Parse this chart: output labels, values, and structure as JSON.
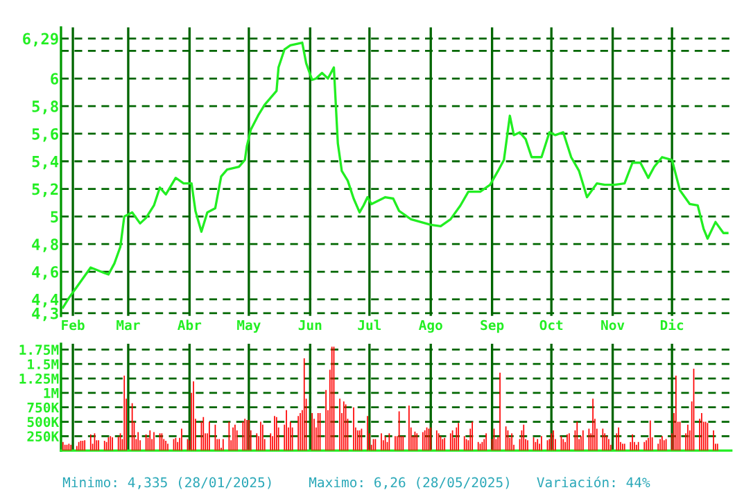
{
  "chart_data": [
    {
      "type": "line",
      "xlim": [
        "2025-01-26",
        "2025-12-31"
      ],
      "ylim": [
        4.28,
        6.37
      ],
      "xticks": [
        {
          "value": "2025-02-01",
          "label": "Feb"
        },
        {
          "value": "2025-03-01",
          "label": "Mar"
        },
        {
          "value": "2025-04-01",
          "label": "Abr"
        },
        {
          "value": "2025-05-01",
          "label": "May"
        },
        {
          "value": "2025-06-01",
          "label": "Jun"
        },
        {
          "value": "2025-07-01",
          "label": "Jul"
        },
        {
          "value": "2025-08-01",
          "label": "Ago"
        },
        {
          "value": "2025-09-01",
          "label": "Sep"
        },
        {
          "value": "2025-10-01",
          "label": "Oct"
        },
        {
          "value": "2025-11-01",
          "label": "Nov"
        },
        {
          "value": "2025-12-01",
          "label": "Dic"
        }
      ],
      "yticks": [
        {
          "value": 4.3,
          "label": "4,3"
        },
        {
          "value": 4.4,
          "label": "4,4"
        },
        {
          "value": 4.6,
          "label": "4,6"
        },
        {
          "value": 4.8,
          "label": "4,8"
        },
        {
          "value": 5,
          "label": "5"
        },
        {
          "value": 5.2,
          "label": "5,2"
        },
        {
          "value": 5.4,
          "label": "5,4"
        },
        {
          "value": 5.6,
          "label": "5,6"
        },
        {
          "value": 5.8,
          "label": "5,8"
        },
        {
          "value": 6,
          "label": "6"
        },
        {
          "value": 6.2,
          "label": null
        },
        {
          "value": 6.29,
          "label": "6,29"
        }
      ],
      "grid": true,
      "x": [
        "2025-01-27",
        "2025-01-30",
        "2025-02-03",
        "2025-02-07",
        "2025-02-10",
        "2025-02-17",
        "2025-02-19",
        "2025-02-22",
        "2025-02-25",
        "2025-02-27",
        "2025-03-03",
        "2025-03-07",
        "2025-03-10",
        "2025-03-14",
        "2025-03-17",
        "2025-03-20",
        "2025-03-25",
        "2025-03-29",
        "2025-04-02",
        "2025-04-04",
        "2025-04-07",
        "2025-04-10",
        "2025-04-14",
        "2025-04-17",
        "2025-04-20",
        "2025-04-26",
        "2025-04-29",
        "2025-04-30",
        "2025-05-02",
        "2025-05-06",
        "2025-05-09",
        "2025-05-12",
        "2025-05-15",
        "2025-05-16",
        "2025-05-19",
        "2025-05-22",
        "2025-05-28",
        "2025-05-30",
        "2025-06-02",
        "2025-06-04",
        "2025-06-07",
        "2025-06-10",
        "2025-06-13",
        "2025-06-15",
        "2025-06-17",
        "2025-06-20",
        "2025-06-23",
        "2025-06-26",
        "2025-06-28",
        "2025-06-30",
        "2025-07-02",
        "2025-07-09",
        "2025-07-13",
        "2025-07-16",
        "2025-07-22",
        "2025-07-27",
        "2025-08-01",
        "2025-08-06",
        "2025-08-11",
        "2025-08-16",
        "2025-08-20",
        "2025-08-26",
        "2025-08-31",
        "2025-09-04",
        "2025-09-07",
        "2025-09-10",
        "2025-09-12",
        "2025-09-15",
        "2025-09-18",
        "2025-09-21",
        "2025-09-26",
        "2025-09-30",
        "2025-10-03",
        "2025-10-07",
        "2025-10-11",
        "2025-10-15",
        "2025-10-19",
        "2025-10-24",
        "2025-10-28",
        "2025-11-02",
        "2025-11-07",
        "2025-11-11",
        "2025-11-15",
        "2025-11-19",
        "2025-11-22",
        "2025-11-26",
        "2025-12-01",
        "2025-12-05",
        "2025-12-10",
        "2025-12-14",
        "2025-12-17",
        "2025-12-19",
        "2025-12-23",
        "2025-12-27",
        "2025-12-29"
      ],
      "series": [
        {
          "color": "#22ee22",
          "values": [
            4.34,
            4.41,
            4.49,
            4.57,
            4.63,
            4.59,
            4.58,
            4.66,
            4.78,
            5.0,
            5.03,
            4.95,
            4.99,
            5.08,
            5.21,
            5.16,
            5.28,
            5.24,
            5.24,
            5.04,
            4.89,
            5.03,
            5.06,
            5.29,
            5.34,
            5.36,
            5.41,
            5.51,
            5.63,
            5.74,
            5.81,
            5.86,
            5.91,
            6.08,
            6.21,
            6.24,
            6.26,
            6.11,
            5.99,
            6.0,
            6.04,
            6.0,
            6.08,
            5.53,
            5.33,
            5.26,
            5.13,
            5.03,
            5.08,
            5.14,
            5.09,
            5.14,
            5.13,
            5.04,
            4.98,
            4.96,
            4.94,
            4.93,
            4.98,
            5.08,
            5.18,
            5.18,
            5.23,
            5.33,
            5.41,
            5.73,
            5.59,
            5.61,
            5.56,
            5.43,
            5.43,
            5.61,
            5.59,
            5.61,
            5.43,
            5.33,
            5.14,
            5.24,
            5.23,
            5.23,
            5.24,
            5.39,
            5.39,
            5.28,
            5.36,
            5.43,
            5.41,
            5.19,
            5.09,
            5.08,
            4.91,
            4.84,
            4.96,
            4.88,
            4.88
          ]
        }
      ],
      "tick_labels": "xy",
      "annotations": [
        "Minimo: 4,335 (28/01/2025)",
        "Maximo: 6,26 (28/05/2025)",
        "Variación: 44%"
      ]
    },
    {
      "type": "bar",
      "xlim": [
        "2025-01-26",
        "2025-12-31"
      ],
      "ylim": [
        0,
        1850000
      ],
      "xticks": [
        {
          "value": "2025-02-01",
          "label": null
        },
        {
          "value": "2025-03-01",
          "label": null
        },
        {
          "value": "2025-04-01",
          "label": null
        },
        {
          "value": "2025-05-01",
          "label": null
        },
        {
          "value": "2025-06-01",
          "label": null
        },
        {
          "value": "2025-07-01",
          "label": null
        },
        {
          "value": "2025-08-01",
          "label": null
        },
        {
          "value": "2025-09-01",
          "label": null
        },
        {
          "value": "2025-10-01",
          "label": null
        },
        {
          "value": "2025-11-01",
          "label": null
        },
        {
          "value": "2025-12-01",
          "label": null
        }
      ],
      "yticks": [
        {
          "value": 250000,
          "label": "250K"
        },
        {
          "value": 500000,
          "label": "500K"
        },
        {
          "value": 750000,
          "label": "750K"
        },
        {
          "value": 1000000,
          "label": "1M"
        },
        {
          "value": 1250000,
          "label": "1.25M"
        },
        {
          "value": 1500000,
          "label": "1.5M"
        },
        {
          "value": 1750000,
          "label": "1.75M"
        }
      ],
      "grid": true,
      "tick_labels": "y",
      "x": [
        "2025-01-27",
        "2025-01-28",
        "2025-01-29",
        "2025-01-30",
        "2025-01-31",
        "2025-02-03",
        "2025-02-04",
        "2025-02-05",
        "2025-02-06",
        "2025-02-07",
        "2025-02-10",
        "2025-02-11",
        "2025-02-12",
        "2025-02-13",
        "2025-02-14",
        "2025-02-17",
        "2025-02-18",
        "2025-02-19",
        "2025-02-20",
        "2025-02-21",
        "2025-02-24",
        "2025-02-25",
        "2025-02-26",
        "2025-02-27",
        "2025-02-28",
        "2025-03-03",
        "2025-03-04",
        "2025-03-05",
        "2025-03-06",
        "2025-03-07",
        "2025-03-10",
        "2025-03-11",
        "2025-03-12",
        "2025-03-13",
        "2025-03-14",
        "2025-03-17",
        "2025-03-18",
        "2025-03-19",
        "2025-03-20",
        "2025-03-21",
        "2025-03-24",
        "2025-03-25",
        "2025-03-26",
        "2025-03-27",
        "2025-03-28",
        "2025-03-31",
        "2025-04-01",
        "2025-04-02",
        "2025-04-03",
        "2025-04-04",
        "2025-04-07",
        "2025-04-08",
        "2025-04-09",
        "2025-04-10",
        "2025-04-11",
        "2025-04-14",
        "2025-04-15",
        "2025-04-16",
        "2025-04-17",
        "2025-04-18",
        "2025-04-21",
        "2025-04-22",
        "2025-04-23",
        "2025-04-24",
        "2025-04-25",
        "2025-04-28",
        "2025-04-29",
        "2025-04-30",
        "2025-05-01",
        "2025-05-02",
        "2025-05-05",
        "2025-05-06",
        "2025-05-07",
        "2025-05-08",
        "2025-05-09",
        "2025-05-12",
        "2025-05-13",
        "2025-05-14",
        "2025-05-15",
        "2025-05-16",
        "2025-05-19",
        "2025-05-20",
        "2025-05-21",
        "2025-05-22",
        "2025-05-23",
        "2025-05-26",
        "2025-05-27",
        "2025-05-28",
        "2025-05-29",
        "2025-05-30",
        "2025-06-02",
        "2025-06-03",
        "2025-06-04",
        "2025-06-05",
        "2025-06-06",
        "2025-06-09",
        "2025-06-10",
        "2025-06-11",
        "2025-06-12",
        "2025-06-13",
        "2025-06-16",
        "2025-06-17",
        "2025-06-18",
        "2025-06-19",
        "2025-06-20",
        "2025-06-23",
        "2025-06-24",
        "2025-06-25",
        "2025-06-26",
        "2025-06-27",
        "2025-06-30",
        "2025-07-01",
        "2025-07-02",
        "2025-07-03",
        "2025-07-04",
        "2025-07-07",
        "2025-07-08",
        "2025-07-09",
        "2025-07-10",
        "2025-07-11",
        "2025-07-14",
        "2025-07-15",
        "2025-07-16",
        "2025-07-17",
        "2025-07-18",
        "2025-07-21",
        "2025-07-22",
        "2025-07-23",
        "2025-07-24",
        "2025-07-25",
        "2025-07-28",
        "2025-07-29",
        "2025-07-30",
        "2025-07-31",
        "2025-08-01",
        "2025-08-04",
        "2025-08-05",
        "2025-08-06",
        "2025-08-07",
        "2025-08-08",
        "2025-08-11",
        "2025-08-12",
        "2025-08-13",
        "2025-08-14",
        "2025-08-15",
        "2025-08-18",
        "2025-08-19",
        "2025-08-20",
        "2025-08-21",
        "2025-08-22",
        "2025-08-25",
        "2025-08-26",
        "2025-08-27",
        "2025-08-28",
        "2025-08-29",
        "2025-09-01",
        "2025-09-02",
        "2025-09-03",
        "2025-09-04",
        "2025-09-05",
        "2025-09-08",
        "2025-09-09",
        "2025-09-10",
        "2025-09-11",
        "2025-09-12",
        "2025-09-15",
        "2025-09-16",
        "2025-09-17",
        "2025-09-18",
        "2025-09-19",
        "2025-09-22",
        "2025-09-23",
        "2025-09-24",
        "2025-09-25",
        "2025-09-26",
        "2025-09-29",
        "2025-09-30",
        "2025-10-01",
        "2025-10-02",
        "2025-10-03",
        "2025-10-06",
        "2025-10-07",
        "2025-10-08",
        "2025-10-09",
        "2025-10-10",
        "2025-10-13",
        "2025-10-14",
        "2025-10-15",
        "2025-10-16",
        "2025-10-17",
        "2025-10-20",
        "2025-10-21",
        "2025-10-22",
        "2025-10-23",
        "2025-10-24",
        "2025-10-27",
        "2025-10-28",
        "2025-10-29",
        "2025-10-30",
        "2025-10-31",
        "2025-11-03",
        "2025-11-04",
        "2025-11-05",
        "2025-11-06",
        "2025-11-07",
        "2025-11-10",
        "2025-11-11",
        "2025-11-12",
        "2025-11-13",
        "2025-11-14",
        "2025-11-17",
        "2025-11-18",
        "2025-11-19",
        "2025-11-20",
        "2025-11-21",
        "2025-11-24",
        "2025-11-25",
        "2025-11-26",
        "2025-11-27",
        "2025-11-28",
        "2025-12-01",
        "2025-12-02",
        "2025-12-03",
        "2025-12-04",
        "2025-12-05",
        "2025-12-08",
        "2025-12-09",
        "2025-12-10",
        "2025-12-11",
        "2025-12-12",
        "2025-12-15",
        "2025-12-16",
        "2025-12-17",
        "2025-12-18",
        "2025-12-19",
        "2025-12-22",
        "2025-12-23",
        "2025-12-24"
      ],
      "series": [
        {
          "color": "#ff0000",
          "values": [
            150000,
            100000,
            100000,
            120000,
            100000,
            80000,
            150000,
            170000,
            170000,
            180000,
            280000,
            120000,
            300000,
            180000,
            180000,
            170000,
            150000,
            230000,
            250000,
            230000,
            240000,
            300000,
            200000,
            1300000,
            900000,
            820000,
            500000,
            200000,
            320000,
            180000,
            280000,
            220000,
            350000,
            200000,
            320000,
            300000,
            300000,
            200000,
            170000,
            120000,
            200000,
            220000,
            150000,
            220000,
            380000,
            200000,
            180000,
            1000000,
            1200000,
            550000,
            500000,
            580000,
            300000,
            300000,
            500000,
            450000,
            200000,
            200000,
            50000,
            200000,
            500000,
            180000,
            400000,
            450000,
            350000,
            500000,
            550000,
            530000,
            530000,
            350000,
            300000,
            250000,
            500000,
            450000,
            200000,
            300000,
            250000,
            600000,
            580000,
            400000,
            450000,
            700000,
            400000,
            500000,
            400000,
            600000,
            650000,
            700000,
            1600000,
            900000,
            650000,
            550000,
            400000,
            650000,
            650000,
            1050000,
            700000,
            1400000,
            1800000,
            1800000,
            900000,
            650000,
            850000,
            800000,
            550000,
            750000,
            400000,
            350000,
            350000,
            380000,
            600000,
            300000,
            100000,
            200000,
            200000,
            300000,
            180000,
            250000,
            150000,
            300000,
            250000,
            250000,
            680000,
            250000,
            250000,
            780000,
            400000,
            250000,
            330000,
            300000,
            320000,
            350000,
            400000,
            380000,
            400000,
            350000,
            300000,
            250000,
            200000,
            220000,
            300000,
            350000,
            220000,
            400000,
            480000,
            250000,
            200000,
            180000,
            380000,
            500000,
            150000,
            120000,
            150000,
            200000,
            300000,
            200000,
            380000,
            200000,
            230000,
            1350000,
            420000,
            350000,
            220000,
            300000,
            100000,
            200000,
            350000,
            450000,
            200000,
            180000,
            230000,
            150000,
            200000,
            120000,
            250000,
            180000,
            200000,
            300000,
            350000,
            200000,
            250000,
            200000,
            150000,
            280000,
            300000,
            350000,
            500000,
            200000,
            250000,
            350000,
            380000,
            300000,
            900000,
            550000,
            380000,
            380000,
            300000,
            250000,
            200000,
            100000,
            300000,
            400000,
            150000,
            120000,
            120000,
            150000,
            280000,
            150000,
            100000,
            150000,
            150000,
            180000,
            220000,
            520000,
            230000,
            120000,
            200000,
            250000,
            180000,
            200000,
            300000,
            650000,
            1300000,
            500000,
            500000,
            300000,
            450000,
            350000,
            850000,
            1420000,
            550000,
            650000,
            500000,
            500000,
            480000,
            350000,
            120000,
            120000
          ]
        }
      ]
    }
  ]
}
